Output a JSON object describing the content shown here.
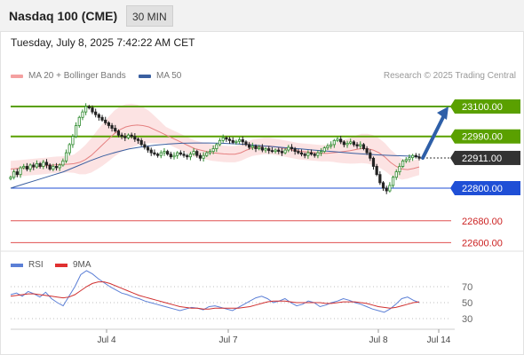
{
  "header": {
    "title": "Nasdaq 100 (CME)",
    "interval": "30 MIN"
  },
  "timestamp": "Tuesday, July 8, 2025 7:42:22 AM CET",
  "legend": {
    "bollinger_label": "MA 20 + Bollinger Bands",
    "ma50_label": "MA 50",
    "copyright": "Research © 2025 Trading Central",
    "colors": {
      "bollinger": "#f4a0a0",
      "ma50": "#3a5fa0"
    }
  },
  "rsi_legend": {
    "rsi_label": "RSI",
    "ma_label": "9MA",
    "colors": {
      "rsi": "#5b7fd6",
      "ma": "#e03030"
    }
  },
  "chart_data": {
    "type": "candlestick",
    "x_tick_labels": [
      "Jul 4",
      "Jul 7",
      "Jul 8",
      "Jul 14"
    ],
    "price_axis_range": [
      22550,
      23180
    ],
    "levels": [
      {
        "value": 23100,
        "label": "23100.00",
        "kind": "resistance",
        "color": "#5aa000"
      },
      {
        "value": 22990,
        "label": "22990.00",
        "kind": "resistance",
        "color": "#5aa000"
      },
      {
        "value": 22911,
        "label": "22911.00",
        "kind": "current",
        "color": "#333333"
      },
      {
        "value": 22800,
        "label": "22800.00",
        "kind": "support",
        "color": "#1f4fd6"
      },
      {
        "value": 22680,
        "label": "22680.00",
        "kind": "support_weak",
        "color": "#e05050"
      },
      {
        "value": 22600,
        "label": "22600.00",
        "kind": "support_weak",
        "color": "#e05050"
      }
    ],
    "forecast_target": 23100,
    "closes": [
      22840,
      22860,
      22850,
      22875,
      22880,
      22870,
      22885,
      22878,
      22890,
      22880,
      22895,
      22885,
      22870,
      22880,
      22875,
      22885,
      22900,
      22930,
      22960,
      22990,
      23030,
      23060,
      23080,
      23100,
      23095,
      23080,
      23070,
      23060,
      23050,
      23040,
      23030,
      23020,
      23010,
      22995,
      22990,
      22985,
      22995,
      22990,
      22980,
      22975,
      22960,
      22950,
      22940,
      22930,
      22925,
      22920,
      22930,
      22935,
      22925,
      22915,
      22920,
      22930,
      22925,
      22920,
      22915,
      22925,
      22935,
      22920,
      22910,
      22920,
      22930,
      22935,
      22945,
      22960,
      22975,
      22985,
      22980,
      22975,
      22968,
      22972,
      22978,
      22970,
      22960,
      22950,
      22955,
      22945,
      22950,
      22940,
      22945,
      22938,
      22935,
      22940,
      22935,
      22930,
      22940,
      22950,
      22945,
      22935,
      22930,
      22925,
      22920,
      22930,
      22925,
      22920,
      22930,
      22935,
      22948,
      22955,
      22960,
      22975,
      22980,
      22970,
      22960,
      22965,
      22970,
      22960,
      22955,
      22960,
      22945,
      22930,
      22910,
      22880,
      22850,
      22820,
      22800,
      22790,
      22810,
      22840,
      22860,
      22880,
      22900,
      22905,
      22912,
      22920,
      22915,
      22910
    ],
    "ma20_approx": [
      22870,
      22872,
      22874,
      22876,
      22878,
      22880,
      22882,
      22884,
      22886,
      22887,
      22888,
      22890,
      22895,
      22905,
      22920,
      22940,
      22960,
      22980,
      23000,
      23015,
      23025,
      23030,
      23032,
      23030,
      23025,
      23015,
      23005,
      22995,
      22985,
      22975,
      22965,
      22955,
      22945,
      22940,
      22935,
      22930,
      22928,
      22926,
      22925,
      22925,
      22930,
      22940,
      22948,
      22952,
      22955,
      22955,
      22952,
      22948,
      22944,
      22940,
      22936,
      22934,
      22932,
      22930,
      22928,
      22928,
      22930,
      22932,
      22935,
      22938,
      22942,
      22946,
      22945,
      22940,
      22930,
      22915,
      22895,
      22880,
      22870,
      22868,
      22872,
      22878
    ],
    "ma50_approx": [
      22800,
      22815,
      22830,
      22845,
      22860,
      22880,
      22900,
      22918,
      22932,
      22944,
      22952,
      22958,
      22962,
      22965,
      22966,
      22966,
      22965,
      22963,
      22960,
      22956,
      22952,
      22948,
      22944,
      22940,
      22936,
      22932,
      22928,
      22925,
      22922,
      22920,
      22918,
      22916
    ],
    "rsi": {
      "levels": [
        70,
        50,
        30
      ],
      "rsi_values": [
        60,
        62,
        58,
        64,
        61,
        57,
        63,
        55,
        50,
        46,
        58,
        70,
        85,
        90,
        86,
        80,
        75,
        70,
        66,
        62,
        60,
        57,
        55,
        52,
        50,
        48,
        46,
        44,
        42,
        40,
        42,
        44,
        43,
        41,
        45,
        46,
        44,
        42,
        40,
        44,
        48,
        52,
        56,
        58,
        55,
        50,
        52,
        55,
        50,
        46,
        48,
        52,
        50,
        45,
        47,
        50,
        52,
        55,
        53,
        50,
        48,
        45,
        42,
        40,
        38,
        42,
        48,
        55,
        57,
        53,
        50
      ],
      "ma_values": [
        58,
        59,
        60,
        61,
        61,
        60,
        59,
        58,
        57,
        56,
        57,
        60,
        65,
        70,
        74,
        76,
        76,
        74,
        71,
        68,
        65,
        62,
        59,
        57,
        55,
        53,
        51,
        49,
        47,
        45,
        44,
        43,
        43,
        42,
        42,
        43,
        43,
        43,
        43,
        43,
        44,
        45,
        47,
        49,
        51,
        52,
        52,
        52,
        51,
        50,
        50,
        50,
        50,
        50,
        49,
        49,
        50,
        51,
        51,
        51,
        50,
        49,
        47,
        45,
        44,
        43,
        44,
        46,
        48,
        50,
        51
      ]
    }
  }
}
